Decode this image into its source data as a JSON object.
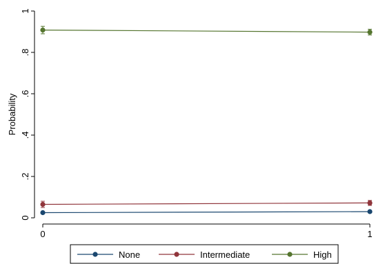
{
  "chart_data": {
    "type": "line",
    "title": "",
    "xlabel": "",
    "ylabel": "Probability",
    "x": [
      0,
      1
    ],
    "xticks": [
      "0",
      "1"
    ],
    "xlim": [
      0,
      1
    ],
    "ylim": [
      0,
      1
    ],
    "yticks": [
      "0",
      ".2",
      ".4",
      ".6",
      ".8",
      "1"
    ],
    "grid": false,
    "legend_position": "bottom",
    "series": [
      {
        "name": "None",
        "color": "#1a476f",
        "values": [
          0.025,
          0.03
        ],
        "ci_low": [
          0.02,
          0.025
        ],
        "ci_high": [
          0.03,
          0.035
        ]
      },
      {
        "name": "Intermediate",
        "color": "#90353b",
        "values": [
          0.065,
          0.072
        ],
        "ci_low": [
          0.05,
          0.06
        ],
        "ci_high": [
          0.08,
          0.084
        ]
      },
      {
        "name": "High",
        "color": "#55752f",
        "values": [
          0.908,
          0.898
        ],
        "ci_low": [
          0.89,
          0.884
        ],
        "ci_high": [
          0.926,
          0.912
        ]
      }
    ]
  }
}
